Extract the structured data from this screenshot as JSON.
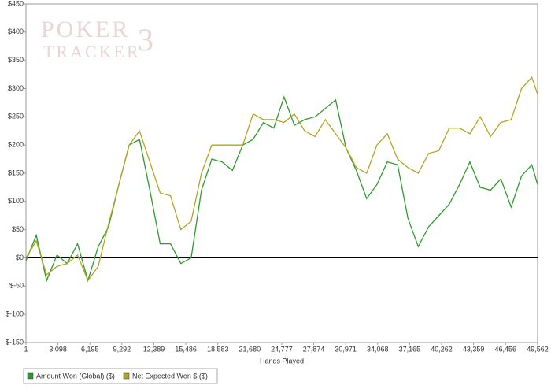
{
  "chart_data": {
    "type": "line",
    "watermark": [
      "POKER",
      "TRACKER",
      "3"
    ],
    "x_label": "Hands Played",
    "x": [
      1,
      1000,
      2000,
      3000,
      4000,
      5000,
      6000,
      7000,
      8000,
      9000,
      10000,
      11000,
      12000,
      13000,
      14000,
      15000,
      16000,
      17000,
      18000,
      19000,
      20000,
      21000,
      22000,
      23000,
      24000,
      25000,
      26000,
      27000,
      28000,
      29000,
      30000,
      31000,
      32000,
      33000,
      34000,
      35000,
      36000,
      37000,
      38000,
      39000,
      40000,
      41000,
      42000,
      43000,
      44000,
      45000,
      46000,
      47000,
      48000,
      49000,
      49562
    ],
    "series": [
      {
        "name": "Amount Won (Global) ($)",
        "color": "#2e9a2e",
        "values": [
          -5,
          40,
          -40,
          5,
          -10,
          25,
          -40,
          20,
          55,
          130,
          200,
          210,
          120,
          25,
          25,
          -10,
          0,
          120,
          175,
          170,
          155,
          200,
          210,
          240,
          230,
          285,
          235,
          245,
          250,
          265,
          280,
          195,
          155,
          105,
          130,
          170,
          165,
          70,
          20,
          55,
          75,
          95,
          130,
          170,
          125,
          120,
          140,
          90,
          145,
          165,
          130
        ]
      },
      {
        "name": "Net Expected Won $ ($)",
        "color": "#b0a524",
        "values": [
          0,
          30,
          -30,
          -15,
          -10,
          5,
          -40,
          -15,
          60,
          130,
          200,
          225,
          170,
          115,
          110,
          50,
          65,
          150,
          200,
          200,
          200,
          200,
          255,
          245,
          245,
          240,
          255,
          225,
          215,
          245,
          220,
          195,
          160,
          150,
          200,
          220,
          175,
          160,
          150,
          185,
          190,
          230,
          230,
          220,
          250,
          215,
          240,
          245,
          300,
          320,
          290
        ]
      }
    ],
    "xlim": [
      1,
      49562
    ],
    "xticks": [
      1,
      {
        "value": 3098,
        "label": "3,098"
      },
      {
        "value": 6195,
        "label": "6,195"
      },
      {
        "value": 9292,
        "label": "9,292"
      },
      {
        "value": 12389,
        "label": "12,389"
      },
      {
        "value": 15486,
        "label": "15,486"
      },
      {
        "value": 18583,
        "label": "18,583"
      },
      {
        "value": 21680,
        "label": "21,680"
      },
      {
        "value": 24777,
        "label": "24,777"
      },
      {
        "value": 27874,
        "label": "27,874"
      },
      {
        "value": 30971,
        "label": "30,971"
      },
      {
        "value": 34068,
        "label": "34,068"
      },
      {
        "value": 37165,
        "label": "37,165"
      },
      {
        "value": 40262,
        "label": "40,262"
      },
      {
        "value": 43359,
        "label": "43,359"
      },
      {
        "value": 46456,
        "label": "46,456"
      },
      {
        "value": 49562,
        "label": "49,562"
      }
    ],
    "ylim": [
      -150,
      450
    ],
    "yticks": [
      {
        "value": -150,
        "label": "$-150"
      },
      {
        "value": -100,
        "label": "$-100"
      },
      {
        "value": -50,
        "label": "$-50"
      },
      {
        "value": 0,
        "label": "$0"
      },
      {
        "value": 50,
        "label": "$50"
      },
      {
        "value": 100,
        "label": "$100"
      },
      {
        "value": 150,
        "label": "$150"
      },
      {
        "value": 200,
        "label": "$200"
      },
      {
        "value": 250,
        "label": "$250"
      },
      {
        "value": 300,
        "label": "$300"
      },
      {
        "value": 350,
        "label": "$350"
      },
      {
        "value": 400,
        "label": "$400"
      },
      {
        "value": 450,
        "label": "$450"
      }
    ],
    "zero_line": true
  }
}
